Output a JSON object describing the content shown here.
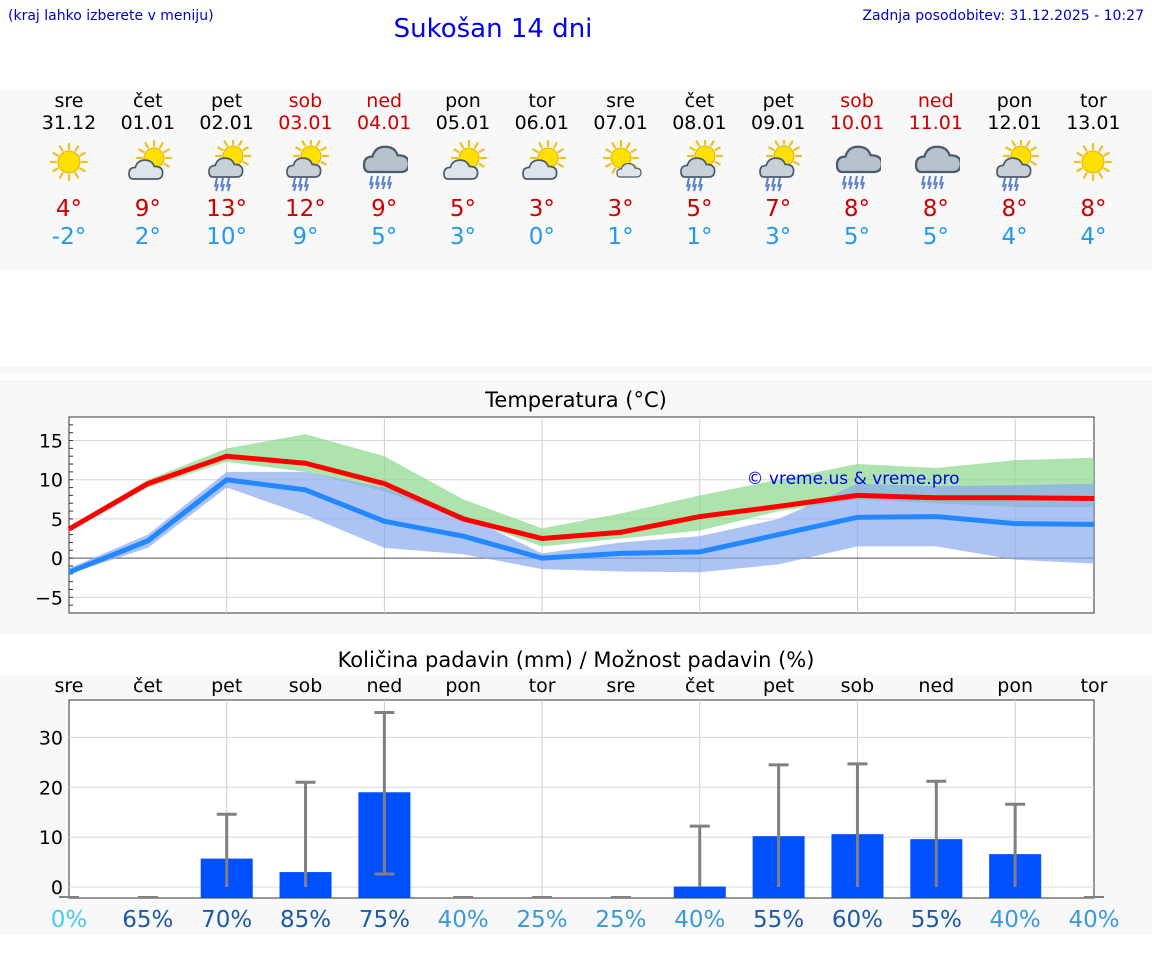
{
  "header": {
    "hint": "(kraj lahko izberete v meniju)",
    "title": "Sukošan 14 dni",
    "updated": "Zadnja posodobitev: 31.12.2025 - 10:27"
  },
  "colors": {
    "max": "#cc0000",
    "min": "#2299ee",
    "link": "#0000ee",
    "bar": "#0050ff"
  },
  "days": [
    {
      "name": "sre",
      "date": "31.12",
      "weekend": false,
      "icon": "sun-icon",
      "max": "4°",
      "min": "-2°"
    },
    {
      "name": "čet",
      "date": "01.01",
      "weekend": false,
      "icon": "sun-cloud-icon",
      "max": "9°",
      "min": "2°"
    },
    {
      "name": "pet",
      "date": "02.01",
      "weekend": false,
      "icon": "sun-cloud-rain-icon",
      "max": "13°",
      "min": "10°"
    },
    {
      "name": "sob",
      "date": "03.01",
      "weekend": true,
      "icon": "sun-cloud-rain-icon",
      "max": "12°",
      "min": "9°"
    },
    {
      "name": "ned",
      "date": "04.01",
      "weekend": true,
      "icon": "cloud-rain-icon",
      "max": "9°",
      "min": "5°"
    },
    {
      "name": "pon",
      "date": "05.01",
      "weekend": false,
      "icon": "sun-cloud-icon",
      "max": "5°",
      "min": "3°"
    },
    {
      "name": "tor",
      "date": "06.01",
      "weekend": false,
      "icon": "sun-cloud-icon",
      "max": "3°",
      "min": "0°"
    },
    {
      "name": "sre",
      "date": "07.01",
      "weekend": false,
      "icon": "sun-small-cloud-icon",
      "max": "3°",
      "min": "1°"
    },
    {
      "name": "čet",
      "date": "08.01",
      "weekend": false,
      "icon": "sun-cloud-rain-icon",
      "max": "5°",
      "min": "1°"
    },
    {
      "name": "pet",
      "date": "09.01",
      "weekend": false,
      "icon": "sun-cloud-rain-icon",
      "max": "7°",
      "min": "3°"
    },
    {
      "name": "sob",
      "date": "10.01",
      "weekend": true,
      "icon": "cloud-rain-icon",
      "max": "8°",
      "min": "5°"
    },
    {
      "name": "ned",
      "date": "11.01",
      "weekend": true,
      "icon": "cloud-rain-icon",
      "max": "8°",
      "min": "5°"
    },
    {
      "name": "pon",
      "date": "12.01",
      "weekend": false,
      "icon": "sun-cloud-rain-icon",
      "max": "8°",
      "min": "4°"
    },
    {
      "name": "tor",
      "date": "13.01",
      "weekend": false,
      "icon": "sun-icon",
      "max": "8°",
      "min": "4°"
    }
  ],
  "chart_data": [
    {
      "type": "line",
      "title": "Temperatura (°C)",
      "watermark": "© vreme.us & vreme.pro",
      "ylim": [
        -7,
        18
      ],
      "yticks": [
        -5,
        0,
        5,
        10,
        15
      ],
      "ytick_labels": [
        "−5",
        "0",
        "5",
        "10",
        "15"
      ],
      "x": [
        0,
        1,
        2,
        3,
        4,
        5,
        6,
        7,
        8,
        9,
        10,
        11,
        12,
        13
      ],
      "series": [
        {
          "name": "max",
          "color": "#ff0000",
          "values": [
            3.7,
            9.5,
            13,
            12.1,
            9.5,
            5,
            2.5,
            3.3,
            5.3,
            6.6,
            8,
            7.7,
            7.7,
            7.6
          ]
        },
        {
          "name": "min",
          "color": "#2288ff",
          "values": [
            -1.8,
            2.2,
            10,
            8.7,
            4.7,
            2.8,
            0,
            0.6,
            0.8,
            3,
            5.2,
            5.3,
            4.4,
            4.3
          ]
        }
      ],
      "bands": [
        {
          "name": "max-range",
          "color": "#8ad88a",
          "upper": [
            4,
            10,
            14,
            15.8,
            13,
            7.5,
            3.8,
            5.7,
            8,
            10,
            12,
            11.5,
            12.5,
            12.8
          ],
          "lower": [
            3.5,
            9,
            12.3,
            11,
            8.5,
            5,
            1.5,
            2.5,
            3.5,
            6,
            7.5,
            7,
            6.5,
            6.5
          ]
        },
        {
          "name": "min-range",
          "color": "#8aaaf0",
          "upper": [
            -1.3,
            3,
            11,
            11,
            9,
            5.5,
            0.6,
            2,
            2.8,
            5,
            9.5,
            9.2,
            9.3,
            9.5
          ],
          "lower": [
            -2,
            1.3,
            9,
            5.5,
            1.3,
            0.5,
            -1.4,
            -1.7,
            -1.8,
            -0.8,
            1.5,
            1.5,
            -0.2,
            -0.7
          ]
        }
      ]
    },
    {
      "type": "bar",
      "title": "Količina padavin (mm) / Možnost padavin (%)",
      "categories": [
        "sre",
        "čet",
        "pet",
        "sob",
        "ned",
        "pon",
        "tor",
        "sre",
        "čet",
        "pet",
        "sob",
        "ned",
        "pon",
        "tor"
      ],
      "values": [
        0,
        0,
        5.7,
        3,
        19,
        0,
        0,
        0,
        0.1,
        10.2,
        10.6,
        9.6,
        6.6,
        0
      ],
      "error_low": [
        0,
        0,
        0,
        0,
        2.6,
        0,
        0,
        0,
        0,
        0,
        0,
        0,
        0,
        0
      ],
      "error_high": [
        0,
        0,
        14.6,
        21,
        35,
        0,
        0,
        0,
        12.2,
        24.5,
        24.7,
        21.2,
        16.6,
        0
      ],
      "ylim": [
        -2.2,
        37.5
      ],
      "yticks": [
        0,
        10,
        20,
        30
      ],
      "chance": [
        "0%",
        "65%",
        "70%",
        "85%",
        "75%",
        "40%",
        "25%",
        "25%",
        "40%",
        "55%",
        "60%",
        "55%",
        "40%",
        "40%"
      ],
      "chance_colors": [
        "#44ccee",
        "#1a5aa8",
        "#1a5aa8",
        "#1a5aa8",
        "#1a5aa8",
        "#3a9ad8",
        "#3a9ad8",
        "#3a9ad8",
        "#3a9ad8",
        "#1a5aa8",
        "#1a5aa8",
        "#1a5aa8",
        "#3a9ad8",
        "#3a9ad8"
      ]
    }
  ]
}
